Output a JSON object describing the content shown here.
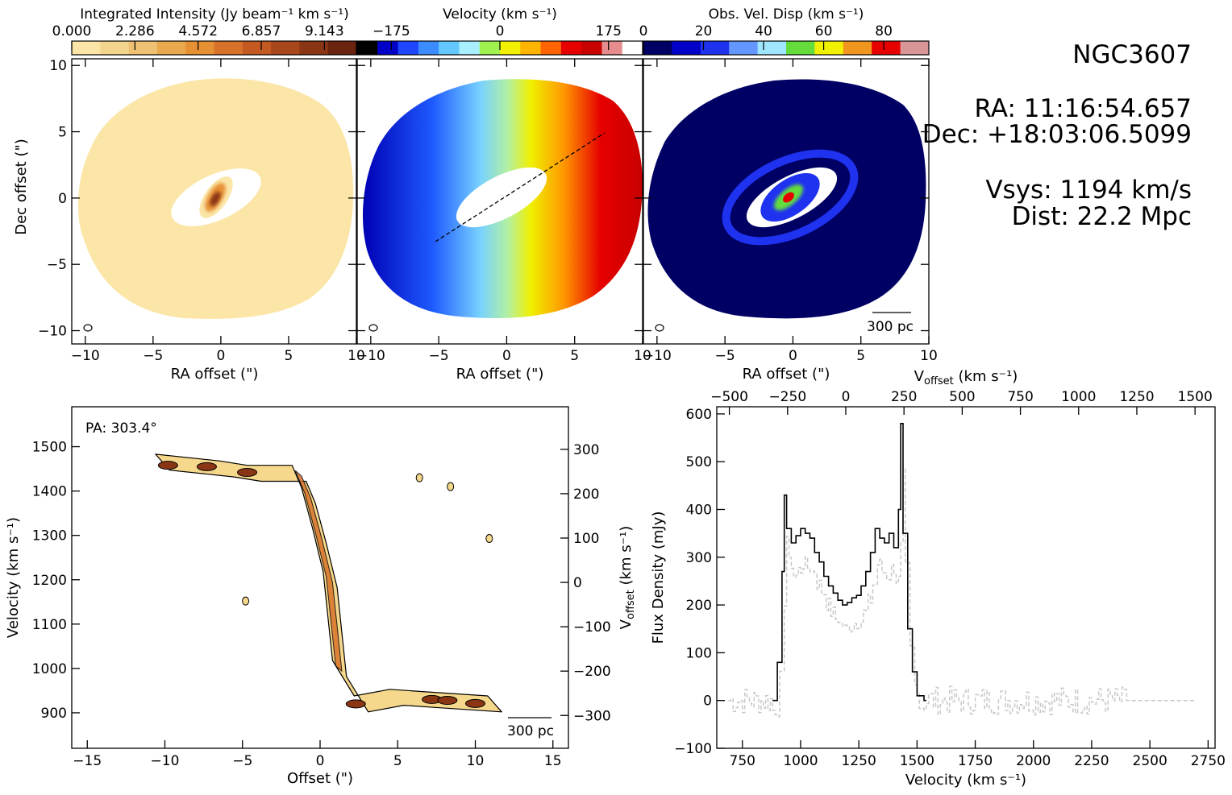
{
  "info": {
    "name": "NGC3607",
    "ra": "RA: 11:16:54.657",
    "dec": "Dec: +18:03:06.5099",
    "vsys": "Vsys: 1194 km/s",
    "dist": "Dist: 22.2 Mpc"
  },
  "colorbars": [
    {
      "label": "Integrated Intensity (Jy beam⁻¹ km s⁻¹)",
      "ticks": [
        "0.000",
        "2.286",
        "4.572",
        "6.857",
        "9.143"
      ],
      "colors": [
        "#fbe6a8",
        "#f4d58e",
        "#efc172",
        "#eaa84f",
        "#e69034",
        "#d8722a",
        "#c45a22",
        "#a8461c",
        "#8a3614",
        "#6a2410"
      ]
    },
    {
      "label": "Velocity (km s⁻¹)",
      "ticks": [
        "−175",
        "0",
        "175"
      ],
      "colors": [
        "#000000",
        "#0000c8",
        "#1e46ff",
        "#3c8cff",
        "#64c8ff",
        "#a8f0ff",
        "#a0f050",
        "#f0f000",
        "#ffb400",
        "#ff6400",
        "#e60000",
        "#c80000",
        "#e68c8c",
        "#ffffff"
      ]
    },
    {
      "label": "Obs. Vel. Disp (km s⁻¹)",
      "ticks": [
        "0",
        "20",
        "40",
        "60",
        "80"
      ],
      "colors": [
        "#000064",
        "#0000c8",
        "#1e32f0",
        "#6496ff",
        "#a0e6ff",
        "#64dc3c",
        "#f0f000",
        "#f0961e",
        "#e60000",
        "#d89696"
      ]
    }
  ],
  "maps": {
    "xlabel": "RA offset (\")",
    "ylabel": "Dec offset (\")",
    "xticks": [
      "−10",
      "−5",
      "0",
      "5",
      "10"
    ],
    "yticks": [
      "−10",
      "−5",
      "0",
      "5",
      "10"
    ],
    "scalebar": "300 pc"
  },
  "pv": {
    "pa": "PA: 303.4°",
    "xlabel": "Offset (\")",
    "ylabel": "Velocity (km s⁻¹)",
    "y2label": "V",
    "y2sub": "offset",
    "y2unit": " (km s⁻¹)",
    "scalebar": "300 pc",
    "xticks": [
      "−15",
      "−10",
      "−5",
      "0",
      "5",
      "10",
      "15"
    ],
    "yticks": [
      "900",
      "1000",
      "1100",
      "1200",
      "1300",
      "1400",
      "1500"
    ],
    "y2ticks": [
      "−300",
      "−200",
      "−100",
      "0",
      "100",
      "200",
      "300"
    ]
  },
  "spectrum": {
    "xlabel": "Velocity (km s⁻¹)",
    "ylabel": "Flux Density (mJy)",
    "toplabel": "V",
    "topsub": "offset",
    "topunit": " (km s⁻¹)",
    "xticks": [
      "750",
      "1000",
      "1250",
      "1500",
      "1750",
      "2000",
      "2250",
      "2500",
      "2750"
    ],
    "yticks": [
      "−100",
      "0",
      "100",
      "200",
      "300",
      "400",
      "500",
      "600"
    ],
    "topticks": [
      "−500",
      "−250",
      "0",
      "250",
      "500",
      "750",
      "1000",
      "1250",
      "1500"
    ]
  },
  "chart_data": [
    {
      "type": "heatmap",
      "name": "Integrated Intensity",
      "xlim": [
        -11,
        10
      ],
      "ylim": [
        -11,
        10.5
      ],
      "colorbar_range": [
        0.0,
        9.143
      ]
    },
    {
      "type": "heatmap",
      "name": "Velocity",
      "xlim": [
        -11,
        10
      ],
      "ylim": [
        -11,
        10.5
      ],
      "colorbar_range": [
        -230,
        230
      ]
    },
    {
      "type": "heatmap",
      "name": "Obs. Vel. Disp",
      "xlim": [
        -11,
        10
      ],
      "ylim": [
        -11,
        10.5
      ],
      "colorbar_range": [
        0,
        95
      ]
    },
    {
      "type": "area",
      "name": "Position-velocity diagram",
      "xlim": [
        -16,
        16
      ],
      "ylim": [
        820,
        1590
      ],
      "points": [
        {
          "x": -10.6,
          "y": 1465
        },
        {
          "x": -6.5,
          "y": 1450
        },
        {
          "x": -4.7,
          "y": 1440
        },
        {
          "x": -1.8,
          "y": 1440
        },
        {
          "x": -1.2,
          "y": 1390
        },
        {
          "x": -0.5,
          "y": 1300
        },
        {
          "x": 0.2,
          "y": 1200
        },
        {
          "x": 0.5,
          "y": 1100
        },
        {
          "x": 0.8,
          "y": 1000
        },
        {
          "x": 2.2,
          "y": 920
        },
        {
          "x": 4.5,
          "y": 935
        },
        {
          "x": 6.5,
          "y": 930
        },
        {
          "x": 10.8,
          "y": 920
        }
      ]
    },
    {
      "type": "line",
      "name": "Spectrum",
      "xlim": [
        640,
        2780
      ],
      "ylim": [
        -100,
        615
      ],
      "x": [
        880,
        900,
        920,
        930,
        940,
        960,
        980,
        1000,
        1020,
        1040,
        1060,
        1080,
        1100,
        1120,
        1140,
        1160,
        1180,
        1200,
        1220,
        1240,
        1260,
        1280,
        1300,
        1320,
        1340,
        1360,
        1380,
        1400,
        1420,
        1430,
        1440,
        1460,
        1480,
        1500,
        1530
      ],
      "y": [
        0,
        80,
        270,
        430,
        360,
        330,
        345,
        360,
        350,
        340,
        310,
        290,
        260,
        240,
        225,
        210,
        200,
        205,
        215,
        220,
        240,
        270,
        310,
        360,
        340,
        330,
        350,
        320,
        400,
        580,
        350,
        150,
        60,
        10,
        0
      ],
      "noise_range": [
        690,
        2680
      ]
    }
  ]
}
